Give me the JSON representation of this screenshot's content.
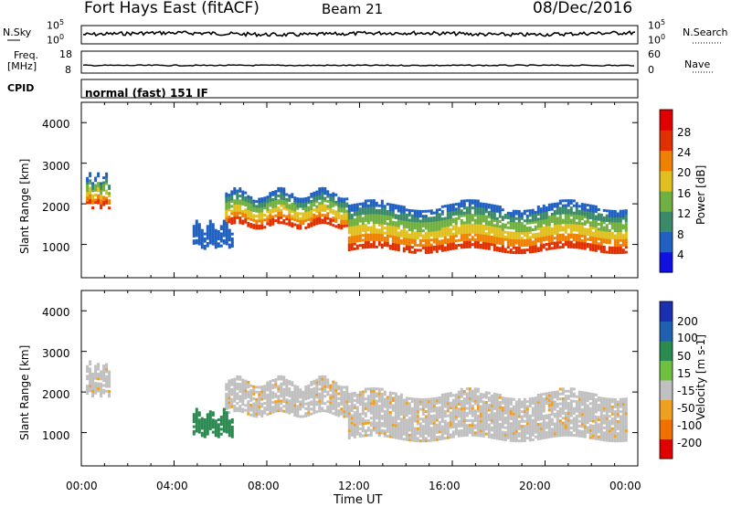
{
  "header": {
    "title": "Fort Hays East (fitACF)",
    "beam": "Beam 21",
    "date": "08/Dec/2016"
  },
  "top_panels": {
    "nsky_label": "N.Sky",
    "nsky_ticks": [
      "10^5",
      "10^0"
    ],
    "nsearch_label": "N.Search",
    "nsearch_ticks": [
      "10^5",
      "10^0"
    ],
    "freq_label_line1": "Freq.",
    "freq_label_line2": "[MHz]",
    "freq_ticks": [
      "18",
      "8"
    ],
    "nave_label": "Nave",
    "nave_ticks": [
      "60",
      "0"
    ],
    "cpid_label": "CPID",
    "cpid_text": "normal (fast) 151 IF"
  },
  "chart_data": [
    {
      "type": "heatmap",
      "name": "power",
      "ylabel": "Slant Range [km]",
      "ylim": [
        180,
        4500
      ],
      "yticks": [
        "4000",
        "3000",
        "2000",
        "1000"
      ],
      "xlim_hours": [
        0,
        24
      ],
      "colorbar": {
        "label": "Power [dB]",
        "ticks": [
          "28",
          "24",
          "20",
          "16",
          "12",
          "8",
          "4"
        ],
        "colors": [
          "#1010e0",
          "#2060c0",
          "#3a8a6a",
          "#70b040",
          "#e0c020",
          "#f08000",
          "#e03000",
          "#e00000"
        ]
      },
      "echo_bands_range_km": [
        {
          "start_h": 0.2,
          "end_h": 1.2,
          "top": 2700,
          "bottom": 2000
        },
        {
          "start_h": 6.2,
          "end_h": 11.5,
          "top": 2300,
          "bottom": 1500
        },
        {
          "start_h": 11.5,
          "end_h": 23.5,
          "top": 2000,
          "bottom": 900
        },
        {
          "start_h": 4.8,
          "end_h": 6.5,
          "top": 1500,
          "bottom": 1000
        }
      ]
    },
    {
      "type": "heatmap",
      "name": "velocity",
      "ylabel": "Slant Range [km]",
      "ylim": [
        180,
        4500
      ],
      "yticks": [
        "4000",
        "3000",
        "2000",
        "1000"
      ],
      "xlabel": "Time UT",
      "xticks": [
        "00:00",
        "04:00",
        "08:00",
        "12:00",
        "16:00",
        "20:00",
        "00:00"
      ],
      "colorbar": {
        "label": "Velocity [m s-1]",
        "ticks": [
          "200",
          "100",
          "50",
          "15",
          "-15",
          "-50",
          "-100",
          "-200"
        ],
        "colors": [
          "#1a30b0",
          "#2060b0",
          "#2a8a50",
          "#70c040",
          "#c0c0c0",
          "#f0a020",
          "#f07000",
          "#e00000"
        ]
      }
    }
  ]
}
